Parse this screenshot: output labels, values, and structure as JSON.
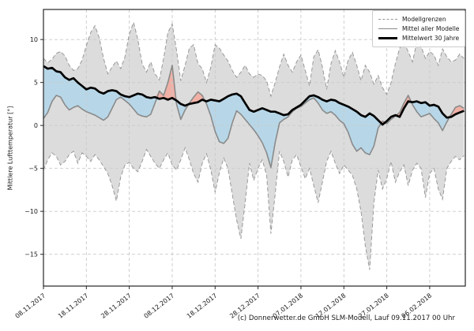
{
  "figure": {
    "background": "#ffffff",
    "caption": "(c) Donnerwetter.de GmbH SLM-Modell, Lauf 09.11.2017 00 Uhr"
  },
  "chart_data": {
    "type": "line",
    "title": "",
    "xlabel": "",
    "ylabel": "Mittlere Lufttemperatur [°]",
    "grid": "dashed",
    "x_unit": "days since first date",
    "x_start_date": "08.11.2017",
    "xlim_days": [
      0,
      98.3
    ],
    "ylim": [
      -18.7,
      13.5
    ],
    "x_tick_days": [
      0,
      10,
      20,
      30,
      40,
      50,
      60,
      70,
      80,
      90
    ],
    "x_tick_labels": [
      "08.11.2017",
      "18.11.2017",
      "28.11.2017",
      "08.12.2017",
      "18.12.2017",
      "28.12.2017",
      "07.01.2018",
      "17.01.2018",
      "27.01.2018",
      "06.02.2018"
    ],
    "y_tick_values": [
      10,
      5,
      0,
      -5,
      -10,
      -15
    ],
    "y_tick_labels": [
      "10",
      "5",
      "0",
      "−5",
      "−10",
      "−15"
    ],
    "legend": {
      "position": "upper right",
      "entries": [
        {
          "label": "Modellgrenzen",
          "line": "dashed-gray"
        },
        {
          "label": "Mittel aller Modelle",
          "line": "solid-gray"
        },
        {
          "label": "Mittelwert 30 Jahre",
          "line": "thick-black"
        }
      ]
    },
    "colors": {
      "band_fill": "#dcdcdc",
      "band_edge": "#999999",
      "above_normal_fill": "#f0b0a6",
      "below_normal_fill": "#b7d7e8",
      "model_mean_line": "#8a8a8a",
      "climate_mean_line": "#000000",
      "grid_line": "#c9c9c9",
      "frame": "#262626"
    },
    "series": [
      {
        "name": "Modellgrenzen obere Grenze",
        "role": "upper_bound",
        "values": [
          7.8,
          7.3,
          7.7,
          8.4,
          8.6,
          8.1,
          7.0,
          6.4,
          6.6,
          7.6,
          9.3,
          10.8,
          11.6,
          10.2,
          7.8,
          6.0,
          6.8,
          7.5,
          6.6,
          8.0,
          10.6,
          12.0,
          10.0,
          7.2,
          6.2,
          7.4,
          6.0,
          5.3,
          7.8,
          10.8,
          11.8,
          8.8,
          5.2,
          7.0,
          9.0,
          9.4,
          7.2,
          6.6,
          5.0,
          6.8,
          9.4,
          9.0,
          8.2,
          7.5,
          6.4,
          5.6,
          6.2,
          7.0,
          6.0,
          5.6,
          6.0,
          5.8,
          5.2,
          3.4,
          5.0,
          6.8,
          8.3,
          7.0,
          6.2,
          7.4,
          8.2,
          6.4,
          4.6,
          8.0,
          8.8,
          6.8,
          4.2,
          7.2,
          8.7,
          7.4,
          5.6,
          7.6,
          8.5,
          7.0,
          5.2,
          7.0,
          6.2,
          4.8,
          5.8,
          4.4,
          3.6,
          5.0,
          7.2,
          9.0,
          9.6,
          8.6,
          7.4,
          9.7,
          9.2,
          7.8,
          8.6,
          8.2,
          7.0,
          8.9,
          8.0,
          7.4,
          7.6,
          8.3,
          7.8
        ]
      },
      {
        "name": "Modellgrenzen untere Grenze",
        "role": "lower_bound",
        "values": [
          -5.2,
          -4.0,
          -3.2,
          -3.6,
          -4.6,
          -4.2,
          -3.4,
          -3.0,
          -4.4,
          -3.2,
          -3.6,
          -4.2,
          -3.4,
          -4.0,
          -4.8,
          -5.6,
          -7.0,
          -8.8,
          -6.0,
          -4.6,
          -4.3,
          -5.0,
          -5.4,
          -4.2,
          -2.8,
          -3.6,
          -4.4,
          -5.0,
          -4.0,
          -3.2,
          -4.6,
          -5.2,
          -4.0,
          -2.6,
          -4.0,
          -5.6,
          -6.6,
          -4.4,
          -3.3,
          -5.2,
          -7.8,
          -5.5,
          -3.8,
          -5.0,
          -8.0,
          -11.0,
          -13.2,
          -9.0,
          -4.4,
          -6.4,
          -5.0,
          -4.0,
          -5.8,
          -12.6,
          -8.0,
          -3.0,
          -4.2,
          -6.0,
          -4.0,
          -3.4,
          -4.8,
          -6.2,
          -5.0,
          -7.0,
          -9.0,
          -6.6,
          -4.2,
          -3.0,
          -4.4,
          -5.6,
          -4.6,
          -5.2,
          -5.8,
          -7.4,
          -10.0,
          -14.0,
          -16.8,
          -9.0,
          -5.2,
          -7.4,
          -6.2,
          -4.2,
          -6.6,
          -5.4,
          -4.6,
          -7.0,
          -5.2,
          -4.4,
          -5.0,
          -8.4,
          -5.6,
          -5.0,
          -7.4,
          -8.6,
          -5.0,
          -4.2,
          -3.6,
          -4.0,
          -3.5
        ]
      },
      {
        "name": "Mittel aller Modelle",
        "role": "model_mean",
        "values": [
          0.8,
          1.5,
          2.8,
          3.5,
          3.3,
          2.4,
          1.8,
          2.1,
          2.3,
          1.9,
          1.6,
          1.4,
          1.2,
          0.9,
          0.6,
          1.0,
          2.0,
          3.0,
          3.3,
          2.9,
          2.5,
          1.9,
          1.3,
          1.1,
          1.0,
          1.3,
          2.6,
          4.0,
          3.5,
          5.0,
          7.0,
          2.5,
          0.7,
          1.8,
          2.6,
          3.3,
          3.9,
          3.5,
          2.5,
          1.1,
          -0.7,
          -1.9,
          -2.1,
          -1.5,
          0.3,
          1.7,
          1.3,
          0.7,
          0.1,
          -0.5,
          -1.2,
          -2.0,
          -3.2,
          -4.9,
          -2.0,
          0.3,
          0.7,
          1.0,
          1.6,
          2.0,
          2.2,
          2.6,
          3.0,
          3.2,
          2.6,
          1.8,
          1.4,
          1.6,
          1.2,
          0.6,
          0.2,
          -0.8,
          -2.2,
          -3.0,
          -2.6,
          -3.2,
          -3.4,
          -2.4,
          -0.3,
          0.5,
          0.2,
          0.7,
          1.1,
          1.5,
          2.6,
          3.5,
          2.4,
          1.6,
          1.0,
          1.2,
          1.4,
          0.8,
          0.3,
          -0.6,
          0.4,
          1.3,
          2.1,
          2.3,
          2.0
        ]
      },
      {
        "name": "Mittelwert 30 Jahre",
        "role": "climate_mean",
        "values": [
          6.9,
          6.6,
          6.7,
          6.3,
          6.2,
          5.6,
          5.3,
          5.5,
          5.0,
          4.6,
          4.2,
          4.4,
          4.3,
          3.9,
          3.7,
          4.0,
          4.1,
          4.0,
          3.6,
          3.4,
          3.3,
          3.5,
          3.7,
          3.6,
          3.3,
          3.2,
          3.3,
          3.1,
          3.2,
          3.0,
          3.2,
          2.9,
          2.5,
          2.3,
          2.5,
          2.6,
          2.7,
          3.0,
          2.8,
          3.0,
          2.9,
          2.8,
          3.1,
          3.4,
          3.6,
          3.7,
          3.4,
          2.6,
          1.8,
          1.6,
          1.8,
          2.0,
          1.8,
          1.6,
          1.6,
          1.4,
          1.2,
          1.3,
          1.8,
          2.1,
          2.4,
          2.9,
          3.4,
          3.5,
          3.3,
          3.0,
          2.8,
          3.0,
          2.9,
          2.6,
          2.4,
          2.2,
          1.9,
          1.6,
          1.2,
          1.0,
          1.4,
          1.1,
          0.6,
          0.1,
          0.5,
          1.0,
          1.2,
          1.0,
          2.0,
          2.8,
          2.7,
          2.8,
          2.6,
          2.7,
          2.3,
          2.4,
          2.2,
          1.4,
          0.9,
          1.0,
          1.3,
          1.5,
          1.7
        ]
      }
    ]
  }
}
